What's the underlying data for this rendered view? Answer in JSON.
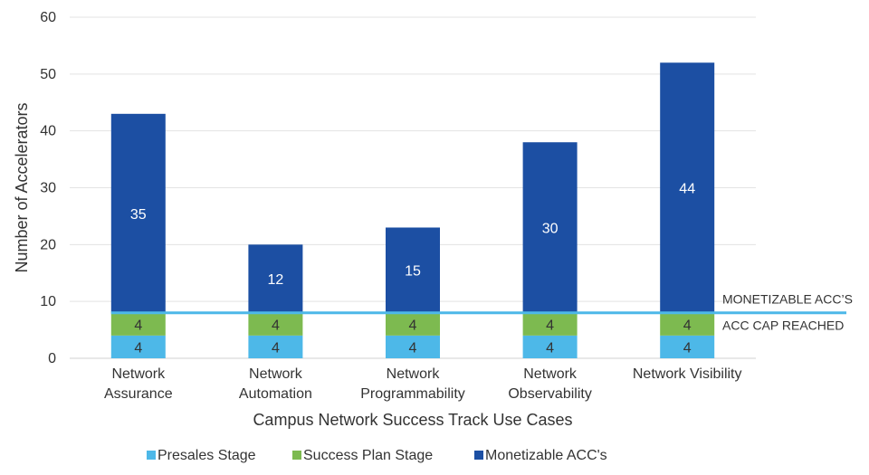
{
  "chart_data": {
    "type": "bar",
    "stacked": true,
    "title": "",
    "xlabel": "Campus Network Success Track Use Cases",
    "ylabel": "Number of Accelerators",
    "ylim": [
      0,
      60
    ],
    "yticks": [
      "0",
      "10",
      "20",
      "30",
      "40",
      "50",
      "60"
    ],
    "categories": [
      [
        "Network",
        "Assurance"
      ],
      [
        "Network",
        "Automation"
      ],
      [
        "Network",
        "Programmability"
      ],
      [
        "Network",
        "Observability"
      ],
      [
        "Network Visibility"
      ]
    ],
    "series": [
      {
        "name": "Presales Stage",
        "color": "#4db8e8",
        "values": [
          4,
          4,
          4,
          4,
          4
        ],
        "labels": [
          "4",
          "4",
          "4",
          "4",
          "4"
        ]
      },
      {
        "name": "Success Plan Stage",
        "color": "#7dba50",
        "values": [
          4,
          4,
          4,
          4,
          4
        ],
        "labels": [
          "4",
          "4",
          "4",
          "4",
          "4"
        ]
      },
      {
        "name": "Monetizable ACC's",
        "color": "#1c4fa3",
        "values": [
          35,
          12,
          15,
          30,
          44
        ],
        "labels": [
          "35",
          "12",
          "15",
          "30",
          "44"
        ]
      }
    ],
    "reference_line": {
      "value": 8,
      "color": "#4db8e8",
      "label_above": "MONETIZABLE ACC’S",
      "label_below": "ACC CAP REACHED"
    },
    "grid": true,
    "legend_position": "bottom"
  }
}
